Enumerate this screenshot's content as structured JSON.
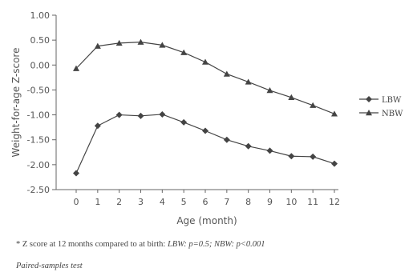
{
  "chart_data": {
    "type": "line",
    "xlabel": "Age (month)",
    "ylabel": "Weight-for-age Z-score",
    "x": [
      0,
      1,
      2,
      3,
      4,
      5,
      6,
      7,
      8,
      9,
      10,
      11,
      12
    ],
    "x_tick_labels": [
      "0",
      "1",
      "2",
      "3",
      "4",
      "5",
      "6",
      "7",
      "8",
      "9",
      "10",
      "11",
      "12"
    ],
    "ylim": [
      -2.5,
      1.0
    ],
    "y_tick_labels": [
      "1.00",
      "0.50",
      "0.00",
      "-0.50",
      "-1.00",
      "-1.50",
      "-2.00",
      "-2.50"
    ],
    "y_ticks": [
      1.0,
      0.5,
      0.0,
      -0.5,
      -1.0,
      -1.5,
      -2.0,
      -2.5
    ],
    "grid": false,
    "legend_position": "right",
    "series": [
      {
        "name": "LBW",
        "marker": "diamond",
        "values": [
          -2.17,
          -1.22,
          -1.0,
          -1.02,
          -0.99,
          -1.15,
          -1.32,
          -1.5,
          -1.63,
          -1.72,
          -1.83,
          -1.84,
          -1.98
        ]
      },
      {
        "name": "NBW",
        "marker": "triangle",
        "values": [
          -0.07,
          0.38,
          0.44,
          0.46,
          0.4,
          0.25,
          0.06,
          -0.18,
          -0.34,
          -0.51,
          -0.65,
          -0.81,
          -0.98
        ]
      }
    ],
    "colors": {
      "line": "#444444",
      "axis": "#666666",
      "text": "#555555"
    }
  },
  "footnote": {
    "line1_prefix": "* Z score at 12 months compared to at birth: ",
    "line1_stats": "LBW: p=0.5; NBW: p<0.001",
    "line2": "Paired-samples test"
  }
}
